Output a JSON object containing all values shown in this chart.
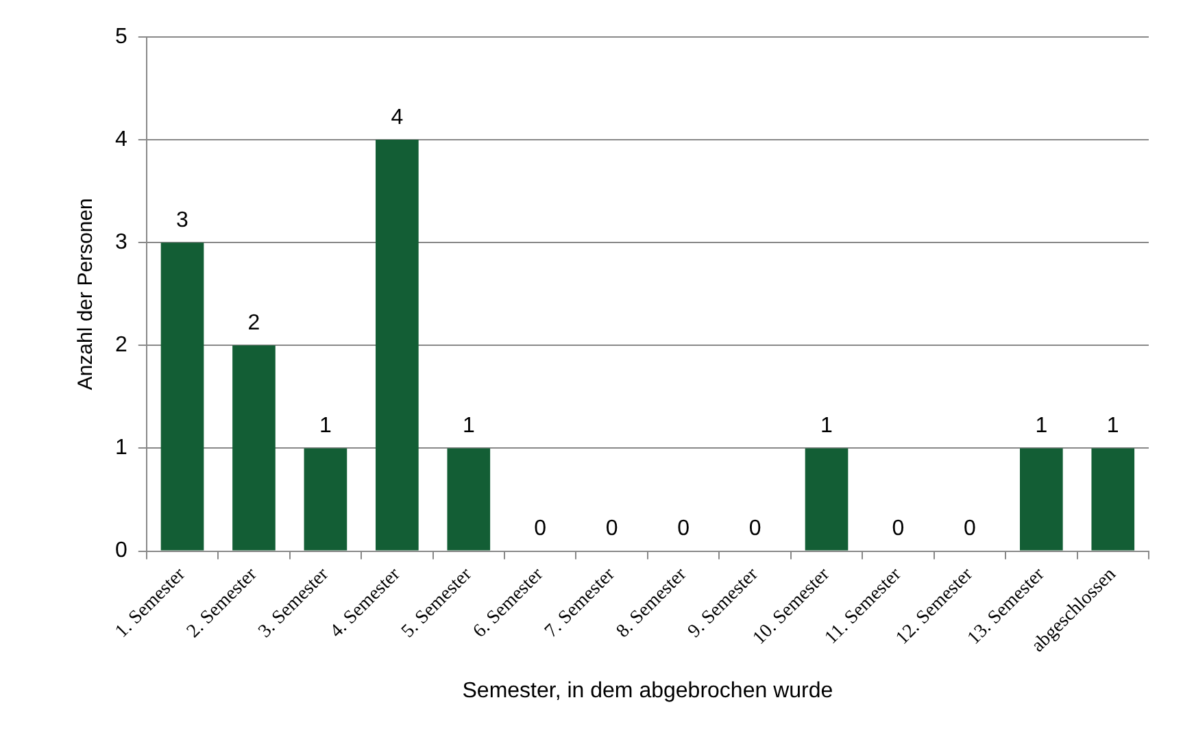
{
  "chart_data": {
    "type": "bar",
    "xlabel": "Semester, in dem abgebrochen wurde",
    "ylabel": "Anzahl der Personen",
    "categories": [
      "1. Semester",
      "2. Semester",
      "3. Semester",
      "4. Semester",
      "5. Semester",
      "6. Semester",
      "7. Semester",
      "8. Semester",
      "9. Semester",
      "10. Semester",
      "11. Semester",
      "12. Semester",
      "13. Semester",
      "abgeschlossen"
    ],
    "values": [
      3,
      2,
      1,
      4,
      1,
      0,
      0,
      0,
      0,
      1,
      0,
      0,
      1,
      1
    ],
    "color": "#135e35",
    "ylim": [
      0,
      5
    ],
    "yticks": [
      0,
      1,
      2,
      3,
      4,
      5
    ],
    "grid": "y",
    "legend": false,
    "data_labels": true
  }
}
